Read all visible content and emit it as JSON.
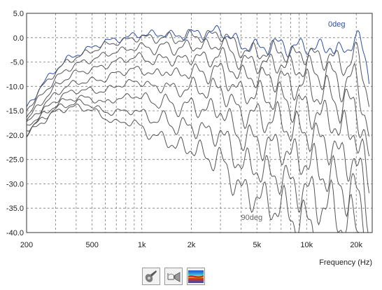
{
  "chart_data": {
    "type": "line",
    "title": "",
    "xlabel": "Frequency (Hz)",
    "ylabel": "",
    "x_scale": "log",
    "xlim": [
      200,
      25000
    ],
    "ylim": [
      -40,
      5
    ],
    "grid": true,
    "x_ticks": [
      {
        "value": 200,
        "label": "200"
      },
      {
        "value": 500,
        "label": "500"
      },
      {
        "value": 1000,
        "label": "1k"
      },
      {
        "value": 2000,
        "label": "2k"
      },
      {
        "value": 5000,
        "label": "5k"
      },
      {
        "value": 10000,
        "label": "10k"
      },
      {
        "value": 20000,
        "label": "20k"
      }
    ],
    "y_ticks": [
      {
        "value": 5,
        "label": "5.0"
      },
      {
        "value": 0,
        "label": "0.0"
      },
      {
        "value": -5,
        "label": "-5.0"
      },
      {
        "value": -10,
        "label": "-10.0"
      },
      {
        "value": -15,
        "label": "-15.0"
      },
      {
        "value": -20,
        "label": "-20.0"
      },
      {
        "value": -25,
        "label": "-25.0"
      },
      {
        "value": -30,
        "label": "-30.0"
      },
      {
        "value": -35,
        "label": "-35.0"
      },
      {
        "value": -40,
        "label": "-40.0"
      }
    ],
    "annotations": [
      {
        "text": "0deg",
        "x": 13500,
        "y": 2.3,
        "color": "#2e4fa3"
      },
      {
        "text": "90deg",
        "x": 4000,
        "y": -37.4,
        "color": "#666666"
      }
    ],
    "series": [
      {
        "color": "#2e4fa3",
        "points": [
          [
            200,
            -14.5
          ],
          [
            250,
            -9.5
          ],
          [
            300,
            -6.5
          ],
          [
            350,
            -4.5
          ],
          [
            400,
            -3.5
          ],
          [
            500,
            -2.0
          ],
          [
            600,
            -0.8
          ],
          [
            700,
            -0.4
          ],
          [
            800,
            0.0
          ],
          [
            900,
            0.4
          ],
          [
            1000,
            0.8
          ],
          [
            1200,
            0.6
          ],
          [
            1400,
            0.9
          ],
          [
            1600,
            0.2
          ],
          [
            2000,
            0.9
          ],
          [
            2500,
            0.8
          ],
          [
            3000,
            1.5
          ],
          [
            3500,
            0.0
          ],
          [
            4000,
            -1.5
          ],
          [
            5000,
            -2.0
          ],
          [
            6000,
            -1.8
          ],
          [
            7000,
            -1.2
          ],
          [
            8000,
            -2.3
          ],
          [
            10000,
            -1.5
          ],
          [
            12000,
            -2.5
          ],
          [
            14000,
            -1.3
          ],
          [
            16000,
            -3.5
          ],
          [
            18000,
            -2.0
          ],
          [
            19500,
            0.8
          ],
          [
            21000,
            -1.0
          ],
          [
            22500,
            -4.5
          ],
          [
            24000,
            -8.5
          ]
        ]
      },
      {
        "color": "#555555",
        "points": [
          [
            200,
            -15.0
          ],
          [
            250,
            -10.0
          ],
          [
            300,
            -7.0
          ],
          [
            350,
            -5.0
          ],
          [
            400,
            -4.0
          ],
          [
            500,
            -2.7
          ],
          [
            600,
            -1.5
          ],
          [
            700,
            -1.0
          ],
          [
            800,
            -0.5
          ],
          [
            900,
            -0.2
          ],
          [
            1000,
            0.2
          ],
          [
            1200,
            -0.3
          ],
          [
            1400,
            0.3
          ],
          [
            1600,
            -0.5
          ],
          [
            2000,
            0.5
          ],
          [
            2500,
            0.2
          ],
          [
            3000,
            1.0
          ],
          [
            3500,
            -0.8
          ],
          [
            4000,
            -2.5
          ],
          [
            5000,
            -3.0
          ],
          [
            6000,
            -2.8
          ],
          [
            7000,
            -2.5
          ],
          [
            8000,
            -3.8
          ],
          [
            10000,
            -3.0
          ],
          [
            12000,
            -4.5
          ],
          [
            14000,
            -3.5
          ],
          [
            16000,
            -6.0
          ],
          [
            18000,
            -5.0
          ],
          [
            19500,
            -3.0
          ],
          [
            21000,
            -5.5
          ],
          [
            22500,
            -9.0
          ],
          [
            24000,
            -12.0
          ]
        ]
      },
      {
        "color": "#555555",
        "points": [
          [
            200,
            -16.0
          ],
          [
            250,
            -11.5
          ],
          [
            300,
            -8.5
          ],
          [
            350,
            -6.5
          ],
          [
            400,
            -5.5
          ],
          [
            500,
            -4.5
          ],
          [
            600,
            -3.5
          ],
          [
            700,
            -2.8
          ],
          [
            800,
            -2.5
          ],
          [
            900,
            -2.0
          ],
          [
            1000,
            -1.8
          ],
          [
            1200,
            -2.5
          ],
          [
            1400,
            -1.5
          ],
          [
            1600,
            -2.5
          ],
          [
            2000,
            -1.5
          ],
          [
            2500,
            -2.0
          ],
          [
            3000,
            -1.0
          ],
          [
            3500,
            -3.0
          ],
          [
            4000,
            -5.0
          ],
          [
            5000,
            -5.0
          ],
          [
            6000,
            -5.5
          ],
          [
            7000,
            -5.0
          ],
          [
            8000,
            -6.5
          ],
          [
            10000,
            -6.0
          ],
          [
            12000,
            -8.0
          ],
          [
            14000,
            -7.0
          ],
          [
            16000,
            -10.0
          ],
          [
            18000,
            -9.0
          ],
          [
            19500,
            -8.0
          ],
          [
            21000,
            -11.0
          ],
          [
            22500,
            -15.0
          ],
          [
            24000,
            -20.0
          ]
        ]
      },
      {
        "color": "#555555",
        "points": [
          [
            200,
            -17.0
          ],
          [
            250,
            -13.0
          ],
          [
            300,
            -10.0
          ],
          [
            350,
            -8.2
          ],
          [
            400,
            -7.2
          ],
          [
            500,
            -6.5
          ],
          [
            600,
            -5.8
          ],
          [
            700,
            -4.8
          ],
          [
            800,
            -4.5
          ],
          [
            900,
            -4.0
          ],
          [
            1000,
            -4.0
          ],
          [
            1200,
            -5.0
          ],
          [
            1400,
            -3.8
          ],
          [
            1600,
            -5.0
          ],
          [
            2000,
            -3.8
          ],
          [
            2500,
            -4.5
          ],
          [
            3000,
            -3.5
          ],
          [
            3500,
            -6.0
          ],
          [
            4000,
            -8.0
          ],
          [
            5000,
            -8.0
          ],
          [
            6000,
            -8.5
          ],
          [
            7000,
            -8.0
          ],
          [
            8000,
            -10.0
          ],
          [
            10000,
            -9.5
          ],
          [
            12000,
            -12.0
          ],
          [
            14000,
            -11.0
          ],
          [
            16000,
            -14.5
          ],
          [
            18000,
            -13.5
          ],
          [
            19500,
            -13.0
          ],
          [
            21000,
            -16.5
          ],
          [
            22500,
            -21.0
          ],
          [
            24000,
            -26.0
          ]
        ]
      },
      {
        "color": "#555555",
        "points": [
          [
            200,
            -17.8
          ],
          [
            250,
            -14.2
          ],
          [
            300,
            -11.5
          ],
          [
            350,
            -10.0
          ],
          [
            400,
            -9.2
          ],
          [
            500,
            -8.8
          ],
          [
            600,
            -8.5
          ],
          [
            700,
            -7.2
          ],
          [
            800,
            -7.0
          ],
          [
            900,
            -6.5
          ],
          [
            1000,
            -6.5
          ],
          [
            1200,
            -7.8
          ],
          [
            1400,
            -6.5
          ],
          [
            1600,
            -7.8
          ],
          [
            2000,
            -6.8
          ],
          [
            2500,
            -7.5
          ],
          [
            3000,
            -6.5
          ],
          [
            3500,
            -9.5
          ],
          [
            4000,
            -11.5
          ],
          [
            5000,
            -11.5
          ],
          [
            6000,
            -12.5
          ],
          [
            7000,
            -12.0
          ],
          [
            8000,
            -14.0
          ],
          [
            10000,
            -14.0
          ],
          [
            12000,
            -16.5
          ],
          [
            14000,
            -16.0
          ],
          [
            16000,
            -19.5
          ],
          [
            18000,
            -19.0
          ],
          [
            19500,
            -18.5
          ],
          [
            21000,
            -22.0
          ],
          [
            22500,
            -27.0
          ],
          [
            24000,
            -32.0
          ]
        ]
      },
      {
        "color": "#555555",
        "points": [
          [
            200,
            -18.5
          ],
          [
            250,
            -15.2
          ],
          [
            300,
            -12.8
          ],
          [
            350,
            -11.5
          ],
          [
            400,
            -10.8
          ],
          [
            500,
            -10.8
          ],
          [
            600,
            -11.0
          ],
          [
            700,
            -9.8
          ],
          [
            800,
            -9.5
          ],
          [
            900,
            -9.0
          ],
          [
            1000,
            -9.0
          ],
          [
            1200,
            -10.5
          ],
          [
            1400,
            -9.5
          ],
          [
            1600,
            -11.0
          ],
          [
            2000,
            -10.0
          ],
          [
            2500,
            -11.0
          ],
          [
            3000,
            -10.0
          ],
          [
            3500,
            -13.5
          ],
          [
            4000,
            -15.5
          ],
          [
            5000,
            -16.0
          ],
          [
            6000,
            -17.0
          ],
          [
            7000,
            -16.5
          ],
          [
            8000,
            -19.0
          ],
          [
            10000,
            -19.0
          ],
          [
            12000,
            -21.5
          ],
          [
            14000,
            -21.5
          ],
          [
            16000,
            -25.0
          ],
          [
            18000,
            -25.0
          ],
          [
            19500,
            -24.5
          ],
          [
            21000,
            -28.5
          ],
          [
            22500,
            -33.0
          ],
          [
            24000,
            -38.0
          ]
        ]
      },
      {
        "color": "#555555",
        "points": [
          [
            200,
            -19.0
          ],
          [
            250,
            -16.0
          ],
          [
            300,
            -13.8
          ],
          [
            350,
            -12.8
          ],
          [
            400,
            -12.3
          ],
          [
            500,
            -12.5
          ],
          [
            600,
            -13.5
          ],
          [
            700,
            -12.5
          ],
          [
            800,
            -12.3
          ],
          [
            900,
            -11.8
          ],
          [
            1000,
            -12.0
          ],
          [
            1200,
            -13.5
          ],
          [
            1400,
            -12.8
          ],
          [
            1600,
            -14.5
          ],
          [
            2000,
            -13.8
          ],
          [
            2500,
            -15.0
          ],
          [
            3000,
            -14.5
          ],
          [
            3500,
            -18.0
          ],
          [
            4000,
            -20.5
          ],
          [
            5000,
            -21.0
          ],
          [
            6000,
            -22.5
          ],
          [
            7000,
            -22.0
          ],
          [
            8000,
            -24.5
          ],
          [
            10000,
            -25.0
          ],
          [
            12000,
            -27.5
          ],
          [
            14000,
            -28.0
          ],
          [
            16000,
            -31.0
          ],
          [
            18000,
            -31.5
          ],
          [
            19500,
            -31.0
          ],
          [
            21000,
            -35.0
          ],
          [
            22500,
            -39.0
          ]
        ]
      },
      {
        "color": "#555555",
        "points": [
          [
            200,
            -19.5
          ],
          [
            250,
            -16.6
          ],
          [
            300,
            -14.6
          ],
          [
            350,
            -13.8
          ],
          [
            400,
            -13.3
          ],
          [
            500,
            -13.8
          ],
          [
            600,
            -15.5
          ],
          [
            700,
            -15.0
          ],
          [
            800,
            -15.3
          ],
          [
            900,
            -14.8
          ],
          [
            1000,
            -15.5
          ],
          [
            1200,
            -17.0
          ],
          [
            1400,
            -16.5
          ],
          [
            1600,
            -18.5
          ],
          [
            2000,
            -18.0
          ],
          [
            2500,
            -19.5
          ],
          [
            3000,
            -19.5
          ],
          [
            3500,
            -23.0
          ],
          [
            4000,
            -26.0
          ],
          [
            5000,
            -26.5
          ],
          [
            6000,
            -28.5
          ],
          [
            7000,
            -28.0
          ],
          [
            8000,
            -30.5
          ],
          [
            10000,
            -31.5
          ],
          [
            12000,
            -34.0
          ],
          [
            14000,
            -34.5
          ],
          [
            16000,
            -37.5
          ],
          [
            18000,
            -38.0
          ],
          [
            19500,
            -38.0
          ],
          [
            21000,
            -40.0
          ]
        ]
      },
      {
        "color": "#555555",
        "points": [
          [
            200,
            -20.0
          ],
          [
            250,
            -17.2
          ],
          [
            300,
            -15.2
          ],
          [
            350,
            -14.5
          ],
          [
            400,
            -14.2
          ],
          [
            500,
            -14.8
          ],
          [
            600,
            -16.5
          ],
          [
            700,
            -17.5
          ],
          [
            800,
            -17.3
          ],
          [
            900,
            -17.5
          ],
          [
            1000,
            -18.5
          ],
          [
            1200,
            -20.5
          ],
          [
            1400,
            -20.5
          ],
          [
            1600,
            -22.5
          ],
          [
            2000,
            -22.5
          ],
          [
            2500,
            -24.5
          ],
          [
            3000,
            -25.0
          ],
          [
            3500,
            -28.5
          ],
          [
            4000,
            -31.5
          ],
          [
            5000,
            -32.5
          ],
          [
            6000,
            -34.5
          ],
          [
            7000,
            -34.5
          ],
          [
            8000,
            -36.5
          ],
          [
            10000,
            -38.0
          ],
          [
            12000,
            -40.0
          ]
        ]
      }
    ]
  },
  "toolbar": {
    "buttons": [
      {
        "icon": "speaker-icon"
      },
      {
        "icon": "polar-plot-icon"
      },
      {
        "icon": "sonogram-icon"
      }
    ]
  }
}
